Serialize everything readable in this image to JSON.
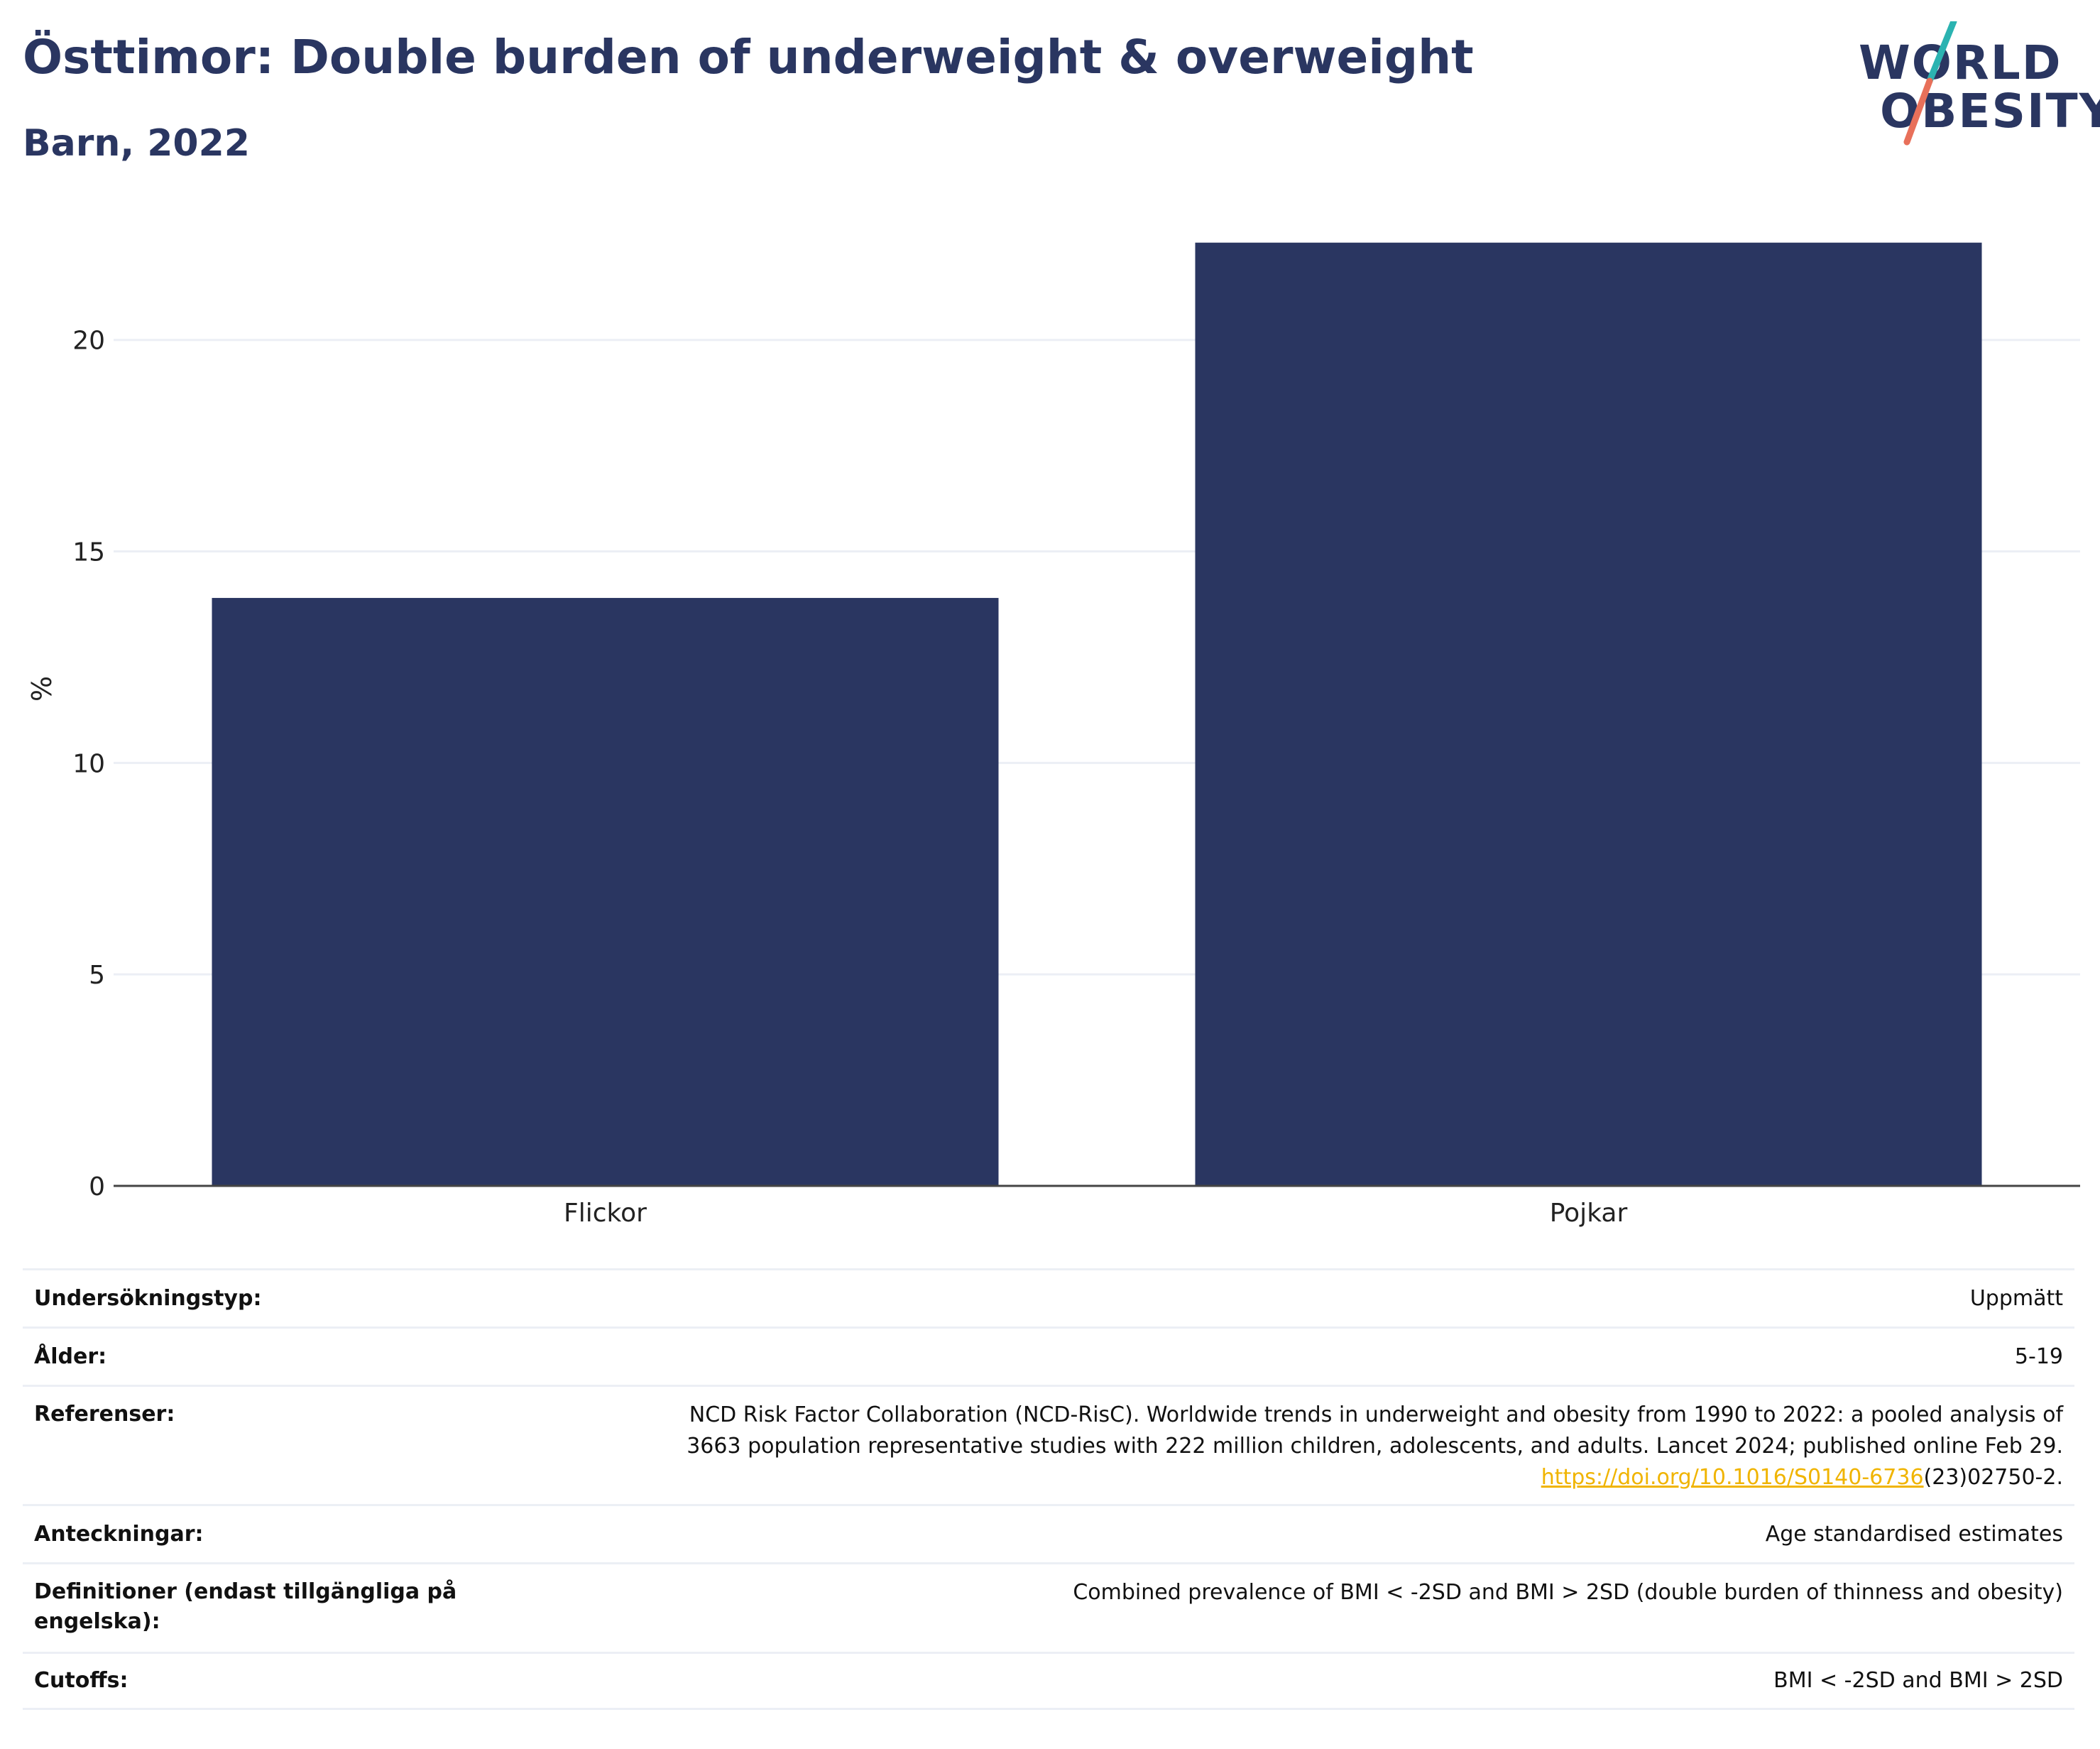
{
  "header": {
    "title": "Östtimor: Double burden of underweight & overweight",
    "subtitle": "Barn, 2022"
  },
  "logo": {
    "line1": "WORLD",
    "line2": "OBESITY"
  },
  "colors": {
    "bar": "#2a3661",
    "text": "#2a3661",
    "grid": "#eceff5",
    "link": "#f0b400",
    "logo_teal": "#2bb3b1",
    "logo_coral": "#e8705a"
  },
  "chart_data": {
    "type": "bar",
    "categories": [
      "Flickor",
      "Pojkar"
    ],
    "values": [
      13.9,
      22.3
    ],
    "ylabel": "%",
    "xlabel": "",
    "ylim": [
      0,
      23
    ],
    "yticks": [
      0,
      5,
      10,
      15,
      20
    ],
    "grid": true
  },
  "info": {
    "rows": [
      {
        "label": "Undersökningstyp:",
        "value": "Uppmätt"
      },
      {
        "label": "Ålder:",
        "value": "5-19"
      },
      {
        "label": "Referenser:",
        "value_line1": "NCD Risk Factor Collaboration (NCD-RisC). Worldwide trends in underweight and obesity from 1990 to 2022: a pooled analysis of",
        "value_line2": "3663 population representative studies with 222 million children, adolescents, and adults. Lancet 2024; published online Feb 29.",
        "link_text": "https://doi.org/10.1016/S0140-6736",
        "link_suffix": "(23)02750-2."
      },
      {
        "label": "Anteckningar:",
        "value": "Age standardised estimates"
      },
      {
        "label": "Definitioner (endast tillgängliga på engelska):",
        "value": "Combined prevalence of BMI < -2SD and BMI > 2SD (double burden of thinness and obesity)"
      },
      {
        "label": "Cutoffs:",
        "value": "BMI < -2SD and BMI > 2SD"
      }
    ]
  }
}
